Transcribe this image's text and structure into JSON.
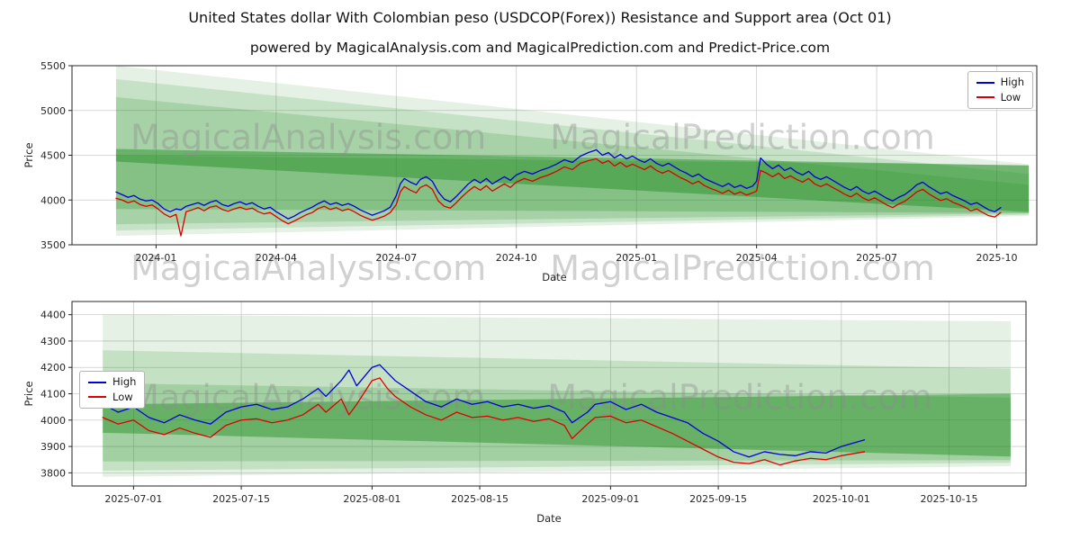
{
  "figure": {
    "title": "United States dollar With Colombian peso (USDCOP(Forex)) Resistance and Support area (Oct 01)",
    "subtitle": "powered by MagicalAnalysis.com and MagicalPrediction.com and Predict-Price.com"
  },
  "colors": {
    "high": "#0000dd",
    "low": "#dd0000",
    "band": "#1e8c1e",
    "grid": "#cccccc",
    "spine": "#262626",
    "tick_text": "#262626",
    "watermark": "#8c8c8c",
    "background": "#ffffff"
  },
  "chart_data": [
    {
      "id": "overview",
      "type": "line",
      "xlabel": "Date",
      "ylabel": "Price",
      "x_unit": "months since 2023-12-01",
      "xlim": [
        -1.1,
        23.0
      ],
      "ylim": [
        3500,
        5500
      ],
      "grid": true,
      "yticks": [
        3500,
        4000,
        4500,
        5000,
        5500
      ],
      "xticks": [
        {
          "x": 1,
          "label": "2024-01"
        },
        {
          "x": 4,
          "label": "2024-04"
        },
        {
          "x": 7,
          "label": "2024-07"
        },
        {
          "x": 10,
          "label": "2024-10"
        },
        {
          "x": 13,
          "label": "2025-01"
        },
        {
          "x": 16,
          "label": "2025-04"
        },
        {
          "x": 19,
          "label": "2025-07"
        },
        {
          "x": 22,
          "label": "2025-10"
        }
      ],
      "legend": {
        "position": "upper-right",
        "entries": [
          {
            "label": "High",
            "color": "#0000dd"
          },
          {
            "label": "Low",
            "color": "#dd0000"
          }
        ]
      },
      "bands": [
        {
          "opacity": 0.12,
          "points": [
            [
              0.0,
              5500
            ],
            [
              22.8,
              4400
            ],
            [
              22.8,
              3820
            ],
            [
              0.0,
              3600
            ]
          ]
        },
        {
          "opacity": 0.15,
          "points": [
            [
              0.0,
              5350
            ],
            [
              22.8,
              4290
            ],
            [
              22.8,
              3835
            ],
            [
              0.0,
              3660
            ]
          ]
        },
        {
          "opacity": 0.18,
          "points": [
            [
              0.0,
              5150
            ],
            [
              22.8,
              4170
            ],
            [
              22.8,
              3850
            ],
            [
              0.0,
              3730
            ]
          ]
        },
        {
          "opacity": 0.25,
          "points": [
            [
              0.0,
              4500
            ],
            [
              22.8,
              4390
            ],
            [
              22.8,
              3855
            ],
            [
              0.0,
              3900
            ]
          ]
        },
        {
          "opacity": 0.45,
          "points": [
            [
              0.0,
              4570
            ],
            [
              22.8,
              4385
            ],
            [
              22.8,
              3865
            ],
            [
              0.0,
              4430
            ]
          ]
        }
      ],
      "watermarks": [
        {
          "text": "MagicalAnalysis.com",
          "ax": 0.245,
          "ay": 0.4
        },
        {
          "text": "MagicalPrediction.com",
          "ax": 0.695,
          "ay": 0.4
        },
        {
          "text": "MagicalAnalysis.com",
          "ax": 0.245,
          "ay": 1.13
        },
        {
          "text": "MagicalPrediction.com",
          "ax": 0.695,
          "ay": 1.13
        }
      ],
      "x": [
        0,
        0.15,
        0.3,
        0.45,
        0.6,
        0.75,
        0.9,
        1.05,
        1.2,
        1.35,
        1.5,
        1.62,
        1.75,
        1.9,
        2.05,
        2.2,
        2.35,
        2.5,
        2.65,
        2.8,
        2.95,
        3.1,
        3.25,
        3.4,
        3.55,
        3.7,
        3.85,
        4,
        4.15,
        4.3,
        4.45,
        4.6,
        4.75,
        4.9,
        5.05,
        5.2,
        5.35,
        5.5,
        5.65,
        5.8,
        5.95,
        6.1,
        6.25,
        6.4,
        6.55,
        6.7,
        6.85,
        7,
        7.1,
        7.2,
        7.35,
        7.5,
        7.6,
        7.75,
        7.9,
        8.05,
        8.2,
        8.35,
        8.5,
        8.65,
        8.8,
        8.95,
        9.1,
        9.25,
        9.4,
        9.55,
        9.7,
        9.85,
        10,
        10.2,
        10.4,
        10.6,
        10.8,
        11,
        11.2,
        11.4,
        11.6,
        11.8,
        12,
        12.15,
        12.3,
        12.45,
        12.6,
        12.75,
        12.9,
        13.05,
        13.2,
        13.35,
        13.5,
        13.65,
        13.8,
        13.95,
        14.1,
        14.25,
        14.4,
        14.55,
        14.7,
        14.85,
        15,
        15.15,
        15.3,
        15.45,
        15.6,
        15.75,
        15.9,
        16,
        16.1,
        16.25,
        16.4,
        16.55,
        16.7,
        16.85,
        17,
        17.15,
        17.3,
        17.45,
        17.6,
        17.75,
        17.9,
        18.05,
        18.2,
        18.35,
        18.5,
        18.65,
        18.8,
        18.95,
        19.1,
        19.25,
        19.4,
        19.55,
        19.7,
        19.85,
        20,
        20.15,
        20.3,
        20.45,
        20.6,
        20.75,
        20.9,
        21.05,
        21.2,
        21.35,
        21.5,
        21.65,
        21.8,
        21.95,
        22.1
      ],
      "series": [
        {
          "name": "High",
          "color": "#0000dd",
          "values": [
            4090,
            4060,
            4030,
            4050,
            4010,
            3990,
            4000,
            3960,
            3900,
            3870,
            3900,
            3890,
            3930,
            3950,
            3970,
            3940,
            3975,
            3995,
            3950,
            3930,
            3960,
            3980,
            3950,
            3970,
            3930,
            3900,
            3920,
            3870,
            3830,
            3790,
            3820,
            3860,
            3890,
            3920,
            3960,
            3990,
            3950,
            3970,
            3940,
            3960,
            3930,
            3890,
            3860,
            3830,
            3855,
            3880,
            3920,
            4050,
            4180,
            4240,
            4200,
            4170,
            4230,
            4260,
            4210,
            4090,
            4010,
            3980,
            4040,
            4110,
            4180,
            4230,
            4190,
            4240,
            4180,
            4220,
            4260,
            4220,
            4280,
            4320,
            4290,
            4330,
            4360,
            4400,
            4450,
            4420,
            4490,
            4530,
            4560,
            4500,
            4530,
            4470,
            4510,
            4460,
            4490,
            4450,
            4420,
            4460,
            4410,
            4380,
            4410,
            4370,
            4330,
            4300,
            4260,
            4290,
            4240,
            4210,
            4180,
            4150,
            4185,
            4140,
            4165,
            4130,
            4155,
            4210,
            4470,
            4400,
            4350,
            4390,
            4330,
            4360,
            4310,
            4280,
            4320,
            4260,
            4230,
            4260,
            4220,
            4180,
            4140,
            4110,
            4150,
            4100,
            4070,
            4100,
            4060,
            4020,
            3990,
            4030,
            4060,
            4110,
            4170,
            4200,
            4150,
            4110,
            4070,
            4090,
            4050,
            4020,
            3990,
            3950,
            3970,
            3930,
            3890,
            3870,
            3915
          ]
        },
        {
          "name": "Low",
          "color": "#dd0000",
          "values": [
            4020,
            4000,
            3970,
            3990,
            3950,
            3930,
            3945,
            3900,
            3845,
            3810,
            3840,
            3600,
            3870,
            3890,
            3915,
            3880,
            3920,
            3935,
            3895,
            3875,
            3900,
            3920,
            3895,
            3910,
            3870,
            3845,
            3860,
            3815,
            3770,
            3735,
            3765,
            3800,
            3835,
            3860,
            3905,
            3930,
            3895,
            3915,
            3880,
            3900,
            3870,
            3830,
            3800,
            3775,
            3795,
            3820,
            3860,
            3950,
            4090,
            4150,
            4110,
            4080,
            4140,
            4170,
            4120,
            3990,
            3930,
            3910,
            3970,
            4040,
            4100,
            4150,
            4110,
            4160,
            4100,
            4140,
            4180,
            4140,
            4200,
            4240,
            4210,
            4250,
            4280,
            4320,
            4370,
            4340,
            4410,
            4440,
            4460,
            4410,
            4440,
            4380,
            4420,
            4370,
            4400,
            4370,
            4340,
            4380,
            4330,
            4300,
            4330,
            4290,
            4250,
            4220,
            4180,
            4210,
            4160,
            4130,
            4105,
            4075,
            4110,
            4065,
            4090,
            4055,
            4080,
            4100,
            4330,
            4300,
            4260,
            4300,
            4240,
            4270,
            4230,
            4200,
            4240,
            4180,
            4150,
            4180,
            4140,
            4105,
            4065,
            4035,
            4075,
            4025,
            3995,
            4025,
            3985,
            3945,
            3915,
            3955,
            3985,
            4035,
            4090,
            4120,
            4070,
            4030,
            3995,
            4015,
            3975,
            3950,
            3920,
            3880,
            3900,
            3860,
            3825,
            3810,
            3860
          ]
        }
      ]
    },
    {
      "id": "detail",
      "type": "line",
      "xlabel": "Date",
      "ylabel": "Price",
      "x_unit": "days since 2025-06-27",
      "xlim": [
        -4,
        120
      ],
      "ylim": [
        3750,
        4450
      ],
      "grid": true,
      "yticks": [
        3800,
        3900,
        4000,
        4100,
        4200,
        4300,
        4400
      ],
      "xticks": [
        {
          "x": 4,
          "label": "2025-07-01"
        },
        {
          "x": 18,
          "label": "2025-07-15"
        },
        {
          "x": 35,
          "label": "2025-08-01"
        },
        {
          "x": 49,
          "label": "2025-08-15"
        },
        {
          "x": 66,
          "label": "2025-09-01"
        },
        {
          "x": 80,
          "label": "2025-09-15"
        },
        {
          "x": 96,
          "label": "2025-10-01"
        },
        {
          "x": 110,
          "label": "2025-10-15"
        }
      ],
      "legend": {
        "position": "center-left",
        "entries": [
          {
            "label": "High",
            "color": "#0000dd"
          },
          {
            "label": "Low",
            "color": "#dd0000"
          }
        ]
      },
      "bands": [
        {
          "opacity": 0.12,
          "points": [
            [
              0,
              4400
            ],
            [
              118,
              4375
            ],
            [
              118,
              3825
            ],
            [
              0,
              3785
            ]
          ]
        },
        {
          "opacity": 0.16,
          "points": [
            [
              0,
              4265
            ],
            [
              118,
              4195
            ],
            [
              118,
              3838
            ],
            [
              0,
              3808
            ]
          ]
        },
        {
          "opacity": 0.2,
          "points": [
            [
              0,
              4140
            ],
            [
              118,
              4085
            ],
            [
              118,
              3848
            ],
            [
              0,
              3843
            ]
          ]
        },
        {
          "opacity": 0.45,
          "points": [
            [
              0,
              4060
            ],
            [
              118,
              4100
            ],
            [
              118,
              3862
            ],
            [
              0,
              3952
            ]
          ]
        }
      ],
      "watermarks": [
        {
          "text": "MagicalAnalysis.com",
          "ax": 0.247,
          "ay": 0.52
        },
        {
          "text": "MagicalPrediction.com",
          "ax": 0.7,
          "ay": 0.52
        }
      ],
      "x": [
        0,
        2,
        4,
        6,
        8,
        10,
        12,
        14,
        16,
        18,
        20,
        22,
        24,
        26,
        28,
        29,
        31,
        32,
        33,
        35,
        36,
        37,
        38,
        40,
        42,
        44,
        46,
        48,
        50,
        52,
        54,
        56,
        58,
        60,
        61,
        63,
        64,
        66,
        68,
        70,
        72,
        74,
        76,
        78,
        80,
        82,
        84,
        86,
        88,
        90,
        92,
        94,
        96,
        99
      ],
      "series": [
        {
          "name": "High",
          "color": "#0000dd",
          "values": [
            4060,
            4030,
            4050,
            4010,
            3990,
            4020,
            4000,
            3985,
            4030,
            4050,
            4060,
            4040,
            4050,
            4080,
            4120,
            4090,
            4150,
            4190,
            4130,
            4200,
            4210,
            4180,
            4150,
            4110,
            4070,
            4050,
            4080,
            4060,
            4070,
            4050,
            4060,
            4045,
            4055,
            4030,
            3990,
            4030,
            4060,
            4070,
            4040,
            4060,
            4030,
            4010,
            3990,
            3950,
            3920,
            3880,
            3860,
            3880,
            3870,
            3865,
            3880,
            3875,
            3900,
            3925
          ]
        },
        {
          "name": "Low",
          "color": "#dd0000",
          "values": [
            4010,
            3985,
            4000,
            3960,
            3945,
            3970,
            3950,
            3935,
            3980,
            4000,
            4005,
            3990,
            4000,
            4020,
            4060,
            4030,
            4080,
            4020,
            4060,
            4150,
            4160,
            4120,
            4090,
            4050,
            4020,
            4000,
            4030,
            4010,
            4015,
            4000,
            4010,
            3995,
            4005,
            3980,
            3930,
            3985,
            4010,
            4015,
            3990,
            4000,
            3975,
            3950,
            3920,
            3890,
            3860,
            3840,
            3835,
            3850,
            3830,
            3845,
            3855,
            3850,
            3865,
            3880
          ]
        }
      ]
    }
  ]
}
